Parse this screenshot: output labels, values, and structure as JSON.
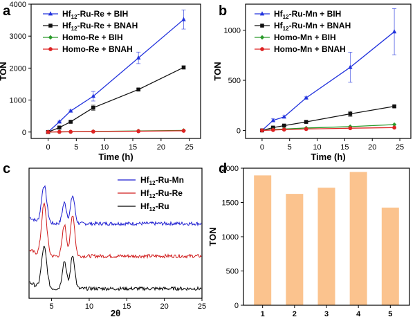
{
  "chart_data": [
    {
      "panel": "a",
      "type": "line",
      "xlabel": "Time (h)",
      "ylabel": "TON",
      "xlim": [
        -3,
        27
      ],
      "ylim": [
        -200,
        4000
      ],
      "xticks": [
        0,
        5,
        10,
        15,
        20,
        25
      ],
      "yticks": [
        0,
        1000,
        2000,
        3000,
        4000
      ],
      "legend_position": "top-left",
      "series": [
        {
          "name": "Hf12-Ru-Re + BIH",
          "label_main": "Hf",
          "label_sub": "12",
          "label_rest": "-Ru-Re + BIH",
          "color": "#2233dd",
          "marker": "triangle",
          "x": [
            0,
            2,
            4,
            8,
            16,
            24
          ],
          "y": [
            0,
            320,
            660,
            1120,
            2320,
            3520
          ],
          "err": [
            0,
            20,
            30,
            150,
            180,
            300
          ]
        },
        {
          "name": "Hf12-Ru-Re + BNAH",
          "label_main": "Hf",
          "label_sub": "12",
          "label_rest": "-Ru-Re + BNAH",
          "color": "#111111",
          "marker": "square",
          "x": [
            0,
            2,
            4,
            8,
            16,
            24
          ],
          "y": [
            0,
            140,
            320,
            760,
            1330,
            2020
          ],
          "err": [
            0,
            10,
            20,
            80,
            40,
            50
          ]
        },
        {
          "name": "Homo-Re + BIH",
          "label_main": "Homo-Re + BIH",
          "label_sub": "",
          "label_rest": "",
          "color": "#2a9a2a",
          "marker": "diamond",
          "x": [
            0,
            2,
            4,
            8,
            16,
            24
          ],
          "y": [
            0,
            6,
            10,
            18,
            35,
            50
          ],
          "err": [
            0,
            0,
            0,
            0,
            0,
            0
          ]
        },
        {
          "name": "Homo-Re + BNAH",
          "label_main": "Homo-Re + BNAH",
          "label_sub": "",
          "label_rest": "",
          "color": "#dd2222",
          "marker": "circle",
          "x": [
            0,
            2,
            4,
            8,
            16,
            24
          ],
          "y": [
            0,
            4,
            8,
            14,
            26,
            40
          ],
          "err": [
            0,
            0,
            0,
            0,
            0,
            0
          ]
        }
      ]
    },
    {
      "panel": "b",
      "type": "line",
      "xlabel": "Time (h)",
      "ylabel": "TON",
      "xlim": [
        -3,
        27
      ],
      "ylim": [
        -80,
        1260
      ],
      "xticks": [
        0,
        5,
        10,
        15,
        20,
        25
      ],
      "yticks": [
        0,
        500,
        1000
      ],
      "legend_position": "top-left",
      "series": [
        {
          "name": "Hf12-Ru-Mn + BIH",
          "label_main": "Hf",
          "label_sub": "12",
          "label_rest": "-Ru-Mn + BIH",
          "color": "#2233dd",
          "marker": "triangle",
          "x": [
            0,
            2,
            4,
            8,
            16,
            24
          ],
          "y": [
            0,
            100,
            135,
            325,
            630,
            985
          ],
          "err": [
            0,
            15,
            10,
            10,
            150,
            230
          ]
        },
        {
          "name": "Hf12-Ru-Mn + BNAH",
          "label_main": "Hf",
          "label_sub": "12",
          "label_rest": "-Ru-Mn + BNAH",
          "color": "#111111",
          "marker": "square",
          "x": [
            0,
            2,
            4,
            8,
            16,
            24
          ],
          "y": [
            0,
            28,
            48,
            85,
            165,
            240
          ],
          "err": [
            0,
            5,
            5,
            8,
            25,
            10
          ]
        },
        {
          "name": "Homo-Mn + BIH",
          "label_main": "Homo-Mn + BIH",
          "label_sub": "",
          "label_rest": "",
          "color": "#2a9a2a",
          "marker": "diamond",
          "x": [
            0,
            2,
            4,
            8,
            16,
            24
          ],
          "y": [
            0,
            8,
            14,
            24,
            38,
            58
          ],
          "err": [
            0,
            0,
            0,
            0,
            0,
            0
          ]
        },
        {
          "name": "Homo-Mn + BNAH",
          "label_main": "Homo-Mn + BNAH",
          "label_sub": "",
          "label_rest": "",
          "color": "#dd2222",
          "marker": "circle",
          "x": [
            0,
            2,
            4,
            8,
            16,
            24
          ],
          "y": [
            0,
            4,
            8,
            14,
            22,
            28
          ],
          "err": [
            0,
            0,
            0,
            0,
            0,
            0
          ]
        }
      ]
    },
    {
      "panel": "c",
      "type": "line",
      "xlabel": "2θ",
      "ylabel": "",
      "xlim": [
        2,
        25
      ],
      "xticks": [
        5,
        10,
        15,
        20,
        25
      ],
      "legend_position": "top-right",
      "series": [
        {
          "name": "Hf12-Ru-Mn",
          "label_main": "Hf",
          "label_sub": "12",
          "label_rest": "-Ru-Mn",
          "color": "#1a1ad0",
          "offset": 2
        },
        {
          "name": "Hf12-Ru-Re",
          "label_main": "Hf",
          "label_sub": "12",
          "label_rest": "-Ru-Re",
          "color": "#d01a1a",
          "offset": 1
        },
        {
          "name": "Hf12-Ru",
          "label_main": "Hf",
          "label_sub": "12",
          "label_rest": "-Ru",
          "color": "#000000",
          "offset": 0
        }
      ],
      "peaks_2theta": [
        4.0,
        6.7,
        7.8
      ]
    },
    {
      "panel": "d",
      "type": "bar",
      "xlabel": "",
      "ylabel": "TON",
      "ylim": [
        0,
        2000
      ],
      "yticks": [
        0,
        500,
        1000,
        1500,
        2000
      ],
      "categories": [
        "1",
        "2",
        "3",
        "4",
        "5"
      ],
      "values": [
        1895,
        1625,
        1715,
        1945,
        1425
      ],
      "color": "#fbc38e"
    }
  ]
}
